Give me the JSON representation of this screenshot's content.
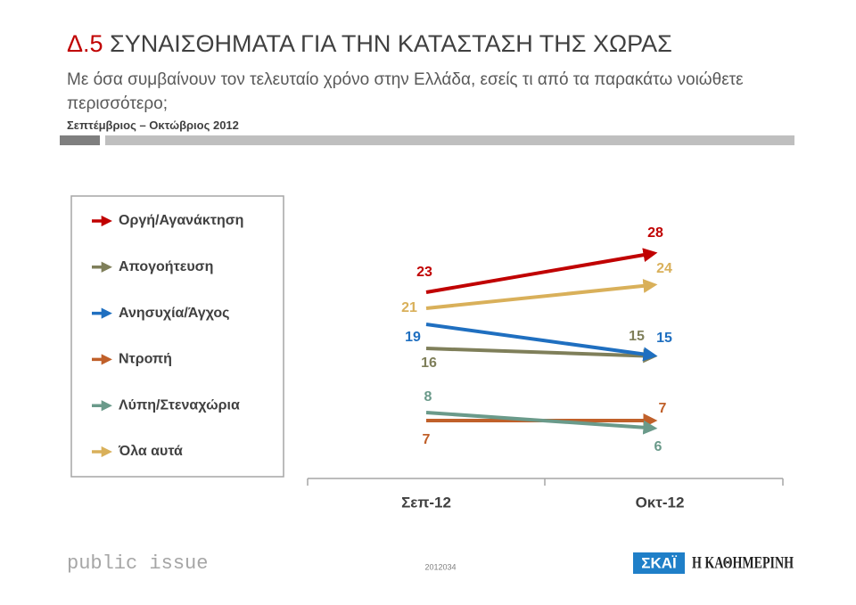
{
  "header": {
    "number": "Δ.5",
    "title": "ΣΥΝΑΙΣΘΗΜΑΤΑ ΓΙΑ ΤΗΝ ΚΑΤΑΣΤΑΣΗ ΤΗΣ ΧΩΡΑΣ",
    "subtitle": "Με όσα συμβαίνουν τον τελευταίο χρόνο στην Ελλάδα, εσείς τι από τα παρακάτω νοιώθετε περισσότερο;",
    "period": "Σεπτέμβριος – Οκτώβριος 2012"
  },
  "chart_data": {
    "type": "line",
    "categories": [
      "Σεπ-12",
      "Οκτ-12"
    ],
    "series": [
      {
        "name": "Οργή/Αγανάκτηση",
        "color": "#c00000",
        "values": [
          23,
          28
        ]
      },
      {
        "name": "Απογοήτευση",
        "color": "#7f7f5a",
        "values": [
          16,
          15
        ]
      },
      {
        "name": "Ανησυχία/Άγχος",
        "color": "#1f6fc0",
        "values": [
          19,
          15
        ]
      },
      {
        "name": "Ντροπή",
        "color": "#c0602a",
        "values": [
          7,
          7
        ]
      },
      {
        "name": "Λύπη/Στεναχώρια",
        "color": "#6a9a8a",
        "values": [
          8,
          6
        ]
      },
      {
        "name": "Όλα αυτά",
        "color": "#d9b05a",
        "values": [
          21,
          24
        ]
      }
    ],
    "ylim": [
      0,
      35
    ]
  },
  "footer": {
    "brand": "public issue",
    "code": "2012034",
    "logo1": "ΣΚΑΪ",
    "logo2": "Η ΚΑΘΗΜΕΡΙΝΗ"
  }
}
